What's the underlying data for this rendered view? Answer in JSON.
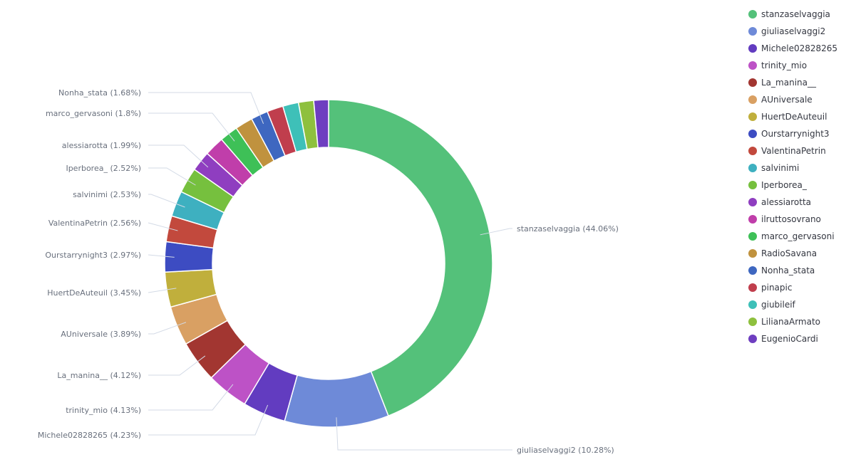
{
  "chart_data": {
    "type": "pie",
    "donut": true,
    "legend_position": "right",
    "slices": [
      {
        "name": "stanzaselvaggia",
        "percent": 44.06,
        "label": "stanzaselvaggia (44.06%)",
        "color": "#54c17a"
      },
      {
        "name": "giuliaselvaggi2",
        "percent": 10.28,
        "label": "giuliaselvaggi2 (10.28%)",
        "color": "#6e8ad8"
      },
      {
        "name": "Michele02828265",
        "percent": 4.23,
        "label": "Michele02828265 (4.23%)",
        "color": "#623cc0"
      },
      {
        "name": "trinity_mio",
        "percent": 4.13,
        "label": "trinity_mio (4.13%)",
        "color": "#bd52c6"
      },
      {
        "name": "La_manina__",
        "percent": 4.12,
        "label": "La_manina__ (4.12%)",
        "color": "#a23631"
      },
      {
        "name": "AUniversale",
        "percent": 3.89,
        "label": "AUniversale (3.89%)",
        "color": "#d9a063"
      },
      {
        "name": "HuertDeAuteuil",
        "percent": 3.45,
        "label": "HuertDeAuteuil (3.45%)",
        "color": "#c0af3c"
      },
      {
        "name": "Ourstarrynight3",
        "percent": 2.97,
        "label": "Ourstarrynight3 (2.97%)",
        "color": "#3d4cc2"
      },
      {
        "name": "ValentinaPetrin",
        "percent": 2.56,
        "label": "ValentinaPetrin (2.56%)",
        "color": "#c2493d"
      },
      {
        "name": "salvinimi",
        "percent": 2.53,
        "label": "salvinimi (2.53%)",
        "color": "#3eb0c0"
      },
      {
        "name": "Iperborea_",
        "percent": 2.52,
        "label": "Iperborea_ (2.52%)",
        "color": "#76c03e"
      },
      {
        "name": "alessiarotta",
        "percent": 1.99,
        "label": "alessiarotta (1.99%)",
        "color": "#8f3ec0"
      },
      {
        "name": "ilruttosovrano",
        "percent": 1.95,
        "label": "",
        "color": "#c03eaa"
      },
      {
        "name": "marco_gervasoni",
        "percent": 1.8,
        "label": "marco_gervasoni (1.8%)",
        "color": "#3ec057"
      },
      {
        "name": "RadioSavana",
        "percent": 1.75,
        "label": "",
        "color": "#c0923e"
      },
      {
        "name": "Nonha_stata",
        "percent": 1.68,
        "label": "Nonha_stata (1.68%)",
        "color": "#3e67c0"
      },
      {
        "name": "pinapic",
        "percent": 1.6,
        "label": "",
        "color": "#c03e4d"
      },
      {
        "name": "giubileif",
        "percent": 1.55,
        "label": "",
        "color": "#3ec0b8"
      },
      {
        "name": "LilianaArmato",
        "percent": 1.5,
        "label": "",
        "color": "#8ec03e"
      },
      {
        "name": "EugenioCardi",
        "percent": 1.45,
        "label": "",
        "color": "#6e3ec0"
      }
    ]
  }
}
